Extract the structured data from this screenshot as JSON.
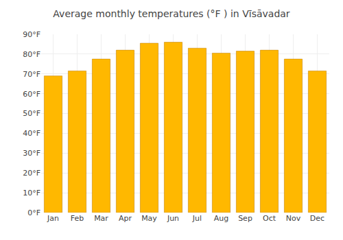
{
  "chart_data": {
    "type": "bar",
    "title": "Average monthly temperatures (°F ) in Vīsāvadar",
    "categories": [
      "Jan",
      "Feb",
      "Mar",
      "Apr",
      "May",
      "Jun",
      "Jul",
      "Aug",
      "Sep",
      "Oct",
      "Nov",
      "Dec"
    ],
    "values": [
      69.0,
      71.5,
      77.5,
      82.0,
      85.5,
      86.0,
      83.0,
      80.5,
      81.5,
      82.0,
      77.5,
      71.5
    ],
    "color": "#FFB800",
    "ylim": [
      0,
      90
    ],
    "yticks": [
      {
        "value": 0,
        "label": "0°F"
      },
      {
        "value": 10,
        "label": "10°F"
      },
      {
        "value": 20,
        "label": "20°F"
      },
      {
        "value": 30,
        "label": "30°F"
      },
      {
        "value": 40,
        "label": "40°F"
      },
      {
        "value": 50,
        "label": "50°F"
      },
      {
        "value": 60,
        "label": "60°F"
      },
      {
        "value": 70,
        "label": "70°F"
      },
      {
        "value": 80,
        "label": "80°F"
      },
      {
        "value": 90,
        "label": "90°F"
      }
    ],
    "grid": true
  }
}
